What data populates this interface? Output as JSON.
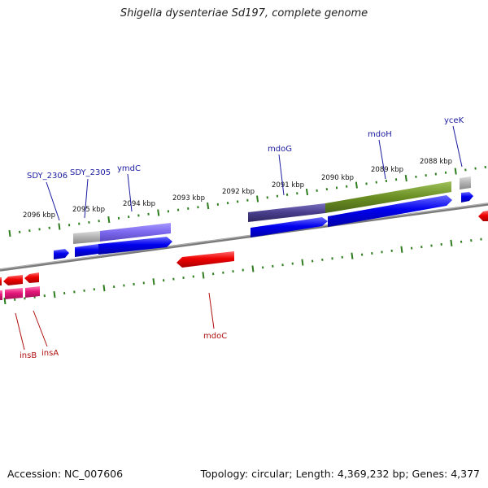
{
  "title": "Shigella dysenteriae Sd197, complete genome",
  "footer": {
    "accession": "Accession: NC_007606",
    "summary": "Topology: circular; Length: 4,369,232 bp; Genes: 4,377"
  },
  "colors": {
    "backbone": "#7a7a7a",
    "tick": "#2e7d1e",
    "gene_forward": "#0000ee",
    "gene_reverse": "#ee0000",
    "gene_reverse_pink": "#e6177a",
    "gene_label": "#1a1aa0",
    "gene_label_reverse": "#b01010",
    "cog_gray": "#b0b0b0",
    "cog_violet": "#7b68ee",
    "cog_darkslate": "#483d8b",
    "cog_olive": "#6b8e23"
  },
  "scale_labels": [
    "2096 kbp",
    "2095 kbp",
    "2094 kbp",
    "2093 kbp",
    "2092 kbp",
    "2091 kbp",
    "2090 kbp",
    "2089 kbp",
    "2088 kbp"
  ],
  "gene_labels": {
    "forward": [
      "SDY_2306",
      "SDY_2305",
      "ymdC",
      "mdoG",
      "mdoH",
      "yceK"
    ],
    "reverse": [
      "mdoC",
      "insB",
      "insA"
    ]
  }
}
